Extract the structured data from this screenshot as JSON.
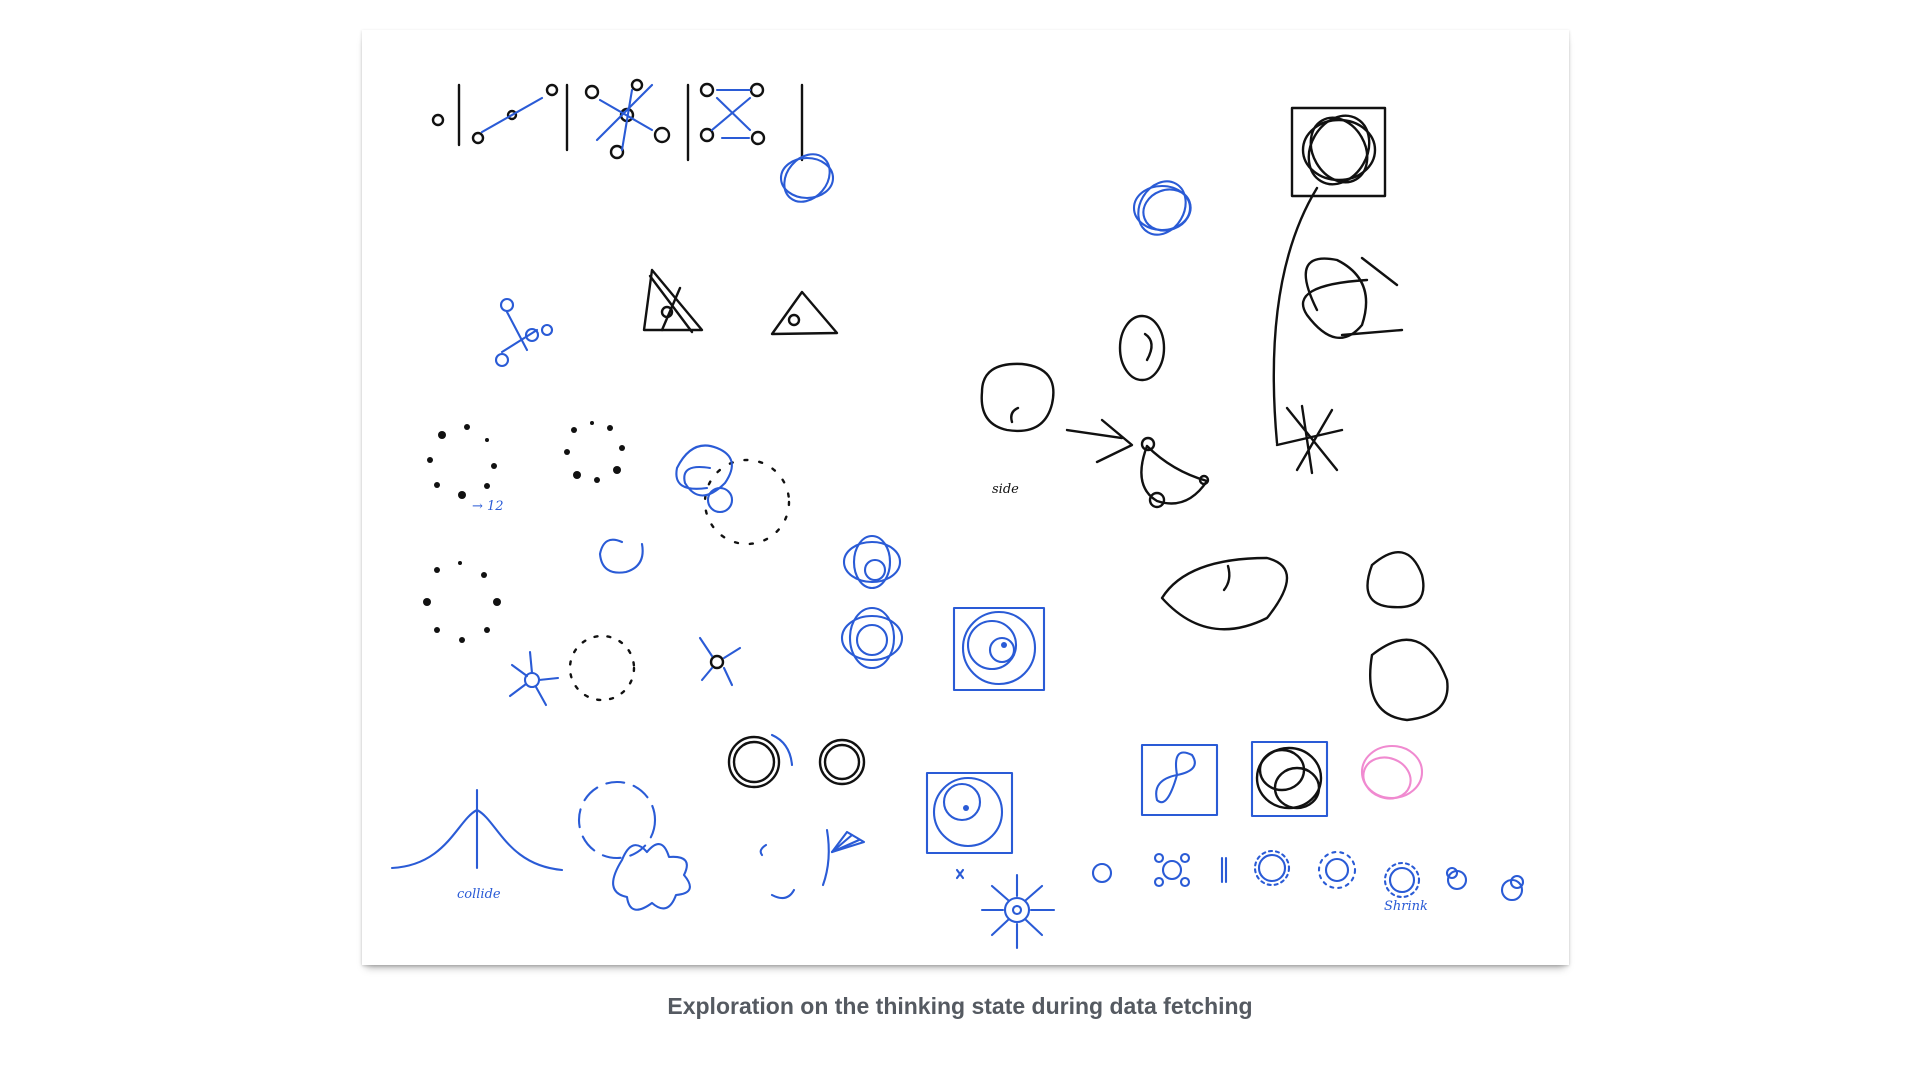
{
  "caption": "Exploration on the thinking state during data fetching",
  "sketch": {
    "notes": {
      "side": "side",
      "count": "→ 12",
      "collide": "collide",
      "shrink": "Shrink"
    },
    "ink_colors": {
      "black": "#111111",
      "blue": "#2a5bd6",
      "pink": "#f08ad0"
    },
    "paper_color": "#ffffff",
    "caption_color": "#555a61"
  }
}
